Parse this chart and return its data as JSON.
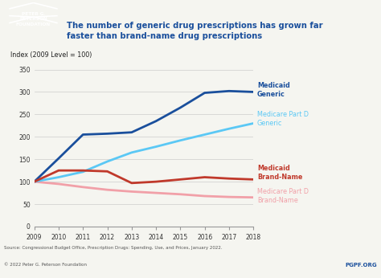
{
  "years": [
    2009,
    2010,
    2011,
    2012,
    2013,
    2014,
    2015,
    2016,
    2017,
    2018
  ],
  "medicaid_generic": [
    100,
    152,
    205,
    207,
    210,
    235,
    265,
    298,
    302,
    300
  ],
  "medicare_partd_generic": [
    100,
    110,
    122,
    145,
    165,
    178,
    192,
    205,
    218,
    230
  ],
  "medicaid_brandname": [
    100,
    125,
    125,
    123,
    97,
    100,
    105,
    110,
    107,
    105
  ],
  "medicare_partd_brandname": [
    100,
    95,
    88,
    82,
    78,
    75,
    72,
    68,
    66,
    65
  ],
  "color_medicaid_generic": "#1a4f9c",
  "color_medicare_generic": "#5bc8f5",
  "color_medicaid_brand": "#c0392b",
  "color_medicare_brand": "#f1a0a8",
  "title_main": "The number of generic drug prescriptions has grown far\nfaster than brand-name drug prescriptions",
  "ylabel": "Index (2009 Level = 100)",
  "ylim": [
    0,
    350
  ],
  "yticks": [
    0,
    50,
    100,
    150,
    200,
    250,
    300,
    350
  ],
  "source_text": "Source: Congressional Budget Office, Prescription Drugs: Spending, Use, and Prices, January 2022.",
  "copyright_text": "© 2022 Peter G. Peterson Foundation",
  "pgpf_text": "PGPF.ORG",
  "label_medicaid_generic": "Medicaid\nGeneric",
  "label_medicare_generic": "Medicare Part D\nGeneric",
  "label_medicaid_brand": "Medicaid\nBrand-Name",
  "label_medicare_brand": "Medicare Part D\nBrand-Name",
  "bg_color": "#f5f5f0",
  "plot_bg_color": "#f5f5f0",
  "title_color": "#1a4f9c",
  "linewidth_main": 2.0
}
